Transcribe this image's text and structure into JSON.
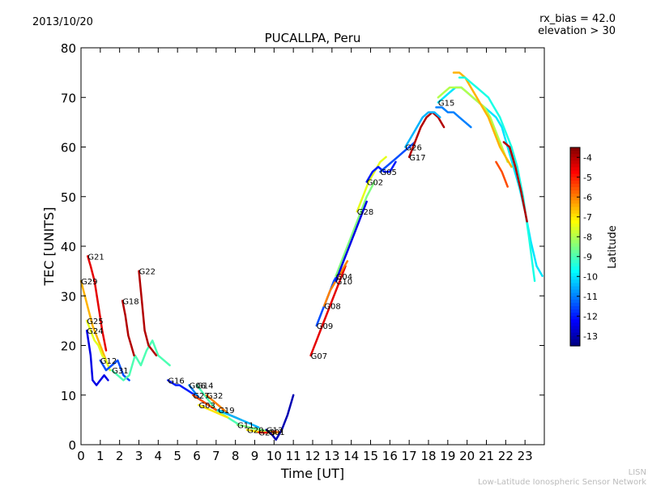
{
  "header": {
    "date": "2013/10/20",
    "rx_bias": "rx_bias = 42.0",
    "elevation": "elevation > 30"
  },
  "footer": {
    "line1": "LISN",
    "line2": "Low-Latitude Ionospheric Sensor Network"
  },
  "colorbar": {
    "label": "Latitude",
    "range": [
      -13.5,
      -3.5
    ],
    "ticks": [
      "-4",
      "-5",
      "-6",
      "-7",
      "-8",
      "-9",
      "-10",
      "-11",
      "-12",
      "-13"
    ],
    "tick_values": [
      -4,
      -5,
      -6,
      -7,
      -8,
      -9,
      -10,
      -11,
      -12,
      -13
    ],
    "colormap": "jet"
  },
  "chart_data": {
    "type": "line",
    "title": "PUCALLPA, Peru",
    "xlabel": "Time [UT]",
    "ylabel": "TEC [UNITS]",
    "xlim": [
      0,
      24
    ],
    "ylim": [
      0,
      80
    ],
    "xticks": [
      "0",
      "1",
      "2",
      "3",
      "4",
      "5",
      "6",
      "7",
      "8",
      "9",
      "10",
      "11",
      "12",
      "13",
      "14",
      "15",
      "16",
      "17",
      "18",
      "19",
      "20",
      "21",
      "22",
      "23"
    ],
    "xtick_values": [
      0,
      1,
      2,
      3,
      4,
      5,
      6,
      7,
      8,
      9,
      10,
      11,
      12,
      13,
      14,
      15,
      16,
      17,
      18,
      19,
      20,
      21,
      22,
      23
    ],
    "yticks": [
      "0",
      "10",
      "20",
      "30",
      "40",
      "50",
      "60",
      "70",
      "80"
    ],
    "ytick_values": [
      0,
      10,
      20,
      30,
      40,
      50,
      60,
      70,
      80
    ],
    "grid": false,
    "series": [
      {
        "name": "G21",
        "lat": -4.5,
        "x": [
          0.35,
          0.5,
          0.7,
          0.9,
          1.1,
          1.3
        ],
        "y": [
          38,
          36,
          33,
          28,
          23,
          19
        ]
      },
      {
        "name": "G29",
        "lat": -6.5,
        "x": [
          0,
          0.2,
          0.4,
          0.6,
          0.8,
          1.0,
          1.2,
          1.4
        ],
        "y": [
          33,
          30,
          27,
          24,
          22,
          20,
          18,
          16
        ]
      },
      {
        "name": "G25",
        "lat": -7.5,
        "x": [
          0.3,
          0.5,
          0.7,
          0.9,
          1.1,
          1.3,
          1.5
        ],
        "y": [
          25,
          23,
          21,
          20,
          18,
          17,
          15
        ]
      },
      {
        "name": "G24",
        "lat": -12.5,
        "x": [
          0.3,
          0.5,
          0.6,
          0.8,
          1.0,
          1.2,
          1.4
        ],
        "y": [
          23,
          18,
          13,
          12,
          13,
          14,
          13
        ]
      },
      {
        "name": "G12",
        "lat": -11.5,
        "x": [
          1.0,
          1.3,
          1.6,
          1.9,
          2.2,
          2.5
        ],
        "y": [
          17,
          15,
          16,
          17,
          14,
          13
        ]
      },
      {
        "name": "G31",
        "lat": -9.0,
        "x": [
          1.6,
          1.9,
          2.2,
          2.5,
          2.8,
          3.1,
          3.4,
          3.7,
          4.0,
          4.3,
          4.6
        ],
        "y": [
          15,
          14,
          13,
          14,
          18,
          16,
          19,
          21,
          18,
          17,
          16
        ]
      },
      {
        "name": "G18",
        "lat": -4.0,
        "x": [
          2.15,
          2.3,
          2.45,
          2.6,
          2.75
        ],
        "y": [
          29,
          26,
          22,
          20,
          18
        ]
      },
      {
        "name": "G22",
        "lat": -4.0,
        "x": [
          3.0,
          3.15,
          3.3,
          3.5,
          3.7,
          3.9
        ],
        "y": [
          35,
          29,
          23,
          20,
          19,
          18
        ]
      },
      {
        "name": "G16",
        "lat": -12.0,
        "x": [
          4.5,
          4.7,
          4.9,
          5.1,
          5.3,
          5.5,
          5.7,
          5.9
        ],
        "y": [
          13,
          12.5,
          12,
          12,
          11.5,
          11,
          10.5,
          10
        ]
      },
      {
        "name": "G06",
        "lat": -11.0,
        "x": [
          5.6,
          5.8,
          6.0,
          6.2,
          6.4,
          6.6
        ],
        "y": [
          12,
          11,
          10,
          9,
          8.5,
          8
        ]
      },
      {
        "name": "G14",
        "lat": -9.0,
        "x": [
          6.0,
          6.2,
          6.4,
          6.6,
          6.8,
          7.0,
          7.2,
          7.4,
          7.6,
          7.8,
          8.0,
          8.2
        ],
        "y": [
          12,
          11,
          10,
          9,
          8,
          7,
          6.5,
          6,
          5.5,
          5,
          4.5,
          4
        ]
      },
      {
        "name": "G27",
        "lat": -5.5,
        "x": [
          5.8,
          6.0,
          6.2,
          6.4,
          6.6,
          6.8,
          7.0
        ],
        "y": [
          10,
          9.5,
          9,
          8.5,
          8,
          7.5,
          7
        ]
      },
      {
        "name": "G03",
        "lat": -7.0,
        "x": [
          6.1,
          6.4,
          6.7,
          7.0,
          7.3,
          7.6
        ],
        "y": [
          8,
          7.5,
          7,
          6.5,
          6,
          5.5
        ]
      },
      {
        "name": "G32",
        "lat": -6.0,
        "x": [
          6.5,
          6.8,
          7.1,
          7.4,
          7.7,
          8.0,
          8.3
        ],
        "y": [
          10,
          9,
          8,
          7,
          6,
          5.5,
          5
        ]
      },
      {
        "name": "G19",
        "lat": -10.5,
        "x": [
          7.1,
          7.4,
          7.7,
          8.0,
          8.3,
          8.6,
          8.9,
          9.2
        ],
        "y": [
          7,
          6.5,
          6,
          5.5,
          5,
          4.5,
          4,
          3.5
        ]
      },
      {
        "name": "G11",
        "lat": -8.5,
        "x": [
          8.1,
          8.4,
          8.7,
          9.0,
          9.3,
          9.6,
          9.9
        ],
        "y": [
          4,
          3.8,
          3.5,
          3.2,
          3,
          2.8,
          2.6
        ]
      },
      {
        "name": "G20",
        "lat": -7.0,
        "x": [
          8.6,
          8.9,
          9.2,
          9.5,
          9.8,
          10.1
        ],
        "y": [
          3,
          2.8,
          2.6,
          2.5,
          2.4,
          2.3
        ]
      },
      {
        "name": "G23",
        "lat": -5.0,
        "x": [
          9.2,
          9.5,
          9.8,
          10.1
        ],
        "y": [
          2.5,
          2.4,
          2.5,
          2.7
        ]
      },
      {
        "name": "G01",
        "lat": -6.0,
        "x": [
          9.7,
          10.0,
          10.3
        ],
        "y": [
          2.6,
          2.4,
          2.6
        ]
      },
      {
        "name": "G13",
        "lat": -13.0,
        "x": [
          9.6,
          9.9,
          10.1,
          10.4,
          10.7,
          11.0
        ],
        "y": [
          3,
          2,
          1,
          3,
          6,
          10
        ]
      },
      {
        "name": "G07",
        "lat": -4.5,
        "x": [
          11.9,
          12.2,
          12.5,
          12.8,
          13.1,
          13.4,
          13.7
        ],
        "y": [
          18,
          21,
          24,
          27,
          30,
          33,
          36
        ]
      },
      {
        "name": "G09",
        "lat": -11.5,
        "x": [
          12.2,
          12.5,
          12.8,
          13.1,
          13.4
        ],
        "y": [
          24,
          27,
          30,
          33,
          35
        ]
      },
      {
        "name": "G08",
        "lat": -6.0,
        "x": [
          12.6,
          12.9,
          13.2,
          13.5,
          13.8
        ],
        "y": [
          28,
          31,
          33,
          35,
          37
        ]
      },
      {
        "name": "G04",
        "lat": -8.5,
        "x": [
          13.2,
          13.6,
          14.0,
          14.4,
          14.8,
          15.2
        ],
        "y": [
          34,
          38,
          42,
          46,
          50,
          53
        ]
      },
      {
        "name": "G10",
        "lat": -12.5,
        "x": [
          13.2,
          13.6,
          14.0,
          14.4,
          14.8
        ],
        "y": [
          33,
          37,
          41,
          45,
          49
        ]
      },
      {
        "name": "G28",
        "lat": -7.5,
        "x": [
          14.3,
          14.6,
          14.9,
          15.2,
          15.5,
          15.8
        ],
        "y": [
          47,
          50,
          53,
          55,
          57,
          58
        ]
      },
      {
        "name": "G02",
        "lat": -12.0,
        "x": [
          14.8,
          15.1,
          15.4,
          15.7,
          16.0,
          16.3
        ],
        "y": [
          53,
          55,
          56,
          55,
          55,
          57
        ]
      },
      {
        "name": "G05",
        "lat": -11.5,
        "x": [
          15.5,
          15.8,
          16.1,
          16.4,
          16.7,
          17.0,
          17.3
        ],
        "y": [
          55,
          56,
          57,
          58,
          59,
          60,
          61
        ]
      },
      {
        "name": "G17",
        "lat": -4.0,
        "x": [
          17.0,
          17.3,
          17.6,
          17.9,
          18.2,
          18.5,
          18.8
        ],
        "y": [
          58,
          61,
          64,
          66,
          67,
          66,
          64
        ]
      },
      {
        "name": "G26",
        "lat": -10.5,
        "x": [
          16.8,
          17.1,
          17.4,
          17.7,
          18.0,
          18.3,
          18.6
        ],
        "y": [
          60,
          62,
          64,
          66,
          67,
          67,
          66
        ]
      },
      {
        "name": "G15",
        "lat": -10.0,
        "x": [
          18.5,
          18.8,
          19.1,
          19.4,
          19.7,
          20.0,
          20.3,
          20.6,
          20.9,
          21.2,
          21.5,
          21.8,
          22.1,
          22.4,
          22.7,
          23.0,
          23.3,
          23.6,
          23.9
        ],
        "y": [
          69,
          70,
          71,
          72,
          72,
          71,
          70,
          69,
          68,
          67,
          66,
          64,
          60,
          56,
          52,
          47,
          41,
          36,
          34
        ]
      },
      {
        "name": "",
        "lat": -8.0,
        "x": [
          18.5,
          18.8,
          19.1,
          19.4,
          19.7,
          20.0,
          20.3,
          20.6,
          20.9,
          21.2,
          21.5,
          21.8,
          22.1
        ],
        "y": [
          70,
          71,
          72,
          72,
          72,
          71,
          70,
          69,
          68,
          66,
          63,
          60,
          57
        ]
      },
      {
        "name": "",
        "lat": -6.5,
        "x": [
          19.3,
          19.6,
          19.9,
          20.2,
          20.5,
          20.8,
          21.1,
          21.4,
          21.7,
          22.0,
          22.3
        ],
        "y": [
          75,
          75,
          74,
          72,
          70,
          68,
          66,
          63,
          60,
          58,
          56
        ]
      },
      {
        "name": "",
        "lat": -9.5,
        "x": [
          19.6,
          19.9,
          20.2,
          20.5,
          20.8,
          21.1,
          21.4,
          21.7,
          22.0,
          22.3,
          22.6,
          22.9,
          23.2,
          23.5
        ],
        "y": [
          74,
          74,
          73,
          72,
          71,
          70,
          68,
          66,
          63,
          60,
          56,
          50,
          42,
          33
        ]
      },
      {
        "name": "",
        "lat": -11.0,
        "x": [
          18.4,
          18.7,
          19.0,
          19.3,
          19.6,
          19.9,
          20.2
        ],
        "y": [
          68,
          68,
          67,
          67,
          66,
          65,
          64
        ]
      },
      {
        "name": "",
        "lat": -4.0,
        "x": [
          21.9,
          22.2,
          22.5,
          22.8,
          23.1
        ],
        "y": [
          61,
          60,
          56,
          51,
          45
        ]
      },
      {
        "name": "",
        "lat": -5.5,
        "x": [
          21.5,
          21.8,
          22.1
        ],
        "y": [
          57,
          55,
          52
        ]
      }
    ]
  }
}
